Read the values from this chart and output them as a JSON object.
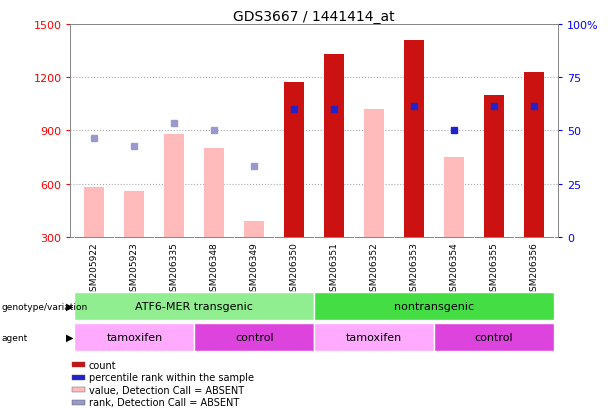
{
  "title": "GDS3667 / 1441414_at",
  "samples": [
    "GSM205922",
    "GSM205923",
    "GSM206335",
    "GSM206348",
    "GSM206349",
    "GSM206350",
    "GSM206351",
    "GSM206352",
    "GSM206353",
    "GSM206354",
    "GSM206355",
    "GSM206356"
  ],
  "count_values": [
    null,
    null,
    null,
    null,
    null,
    1170,
    1330,
    null,
    1410,
    null,
    1100,
    1230
  ],
  "value_absent": [
    580,
    560,
    880,
    800,
    390,
    null,
    null,
    1020,
    null,
    750,
    null,
    null
  ],
  "rank_absent_y": [
    860,
    810,
    940,
    900,
    700,
    null,
    null,
    null,
    null,
    null,
    null,
    null
  ],
  "percentile_rank_left": [
    null,
    null,
    null,
    null,
    null,
    1020,
    1020,
    null,
    1040,
    905,
    1040,
    1040
  ],
  "ylim_left": [
    300,
    1500
  ],
  "ylim_right": [
    0,
    100
  ],
  "yticks_left": [
    300,
    600,
    900,
    1200,
    1500
  ],
  "yticks_right": [
    0,
    25,
    50,
    75,
    100
  ],
  "groups": [
    {
      "label": "ATF6-MER transgenic",
      "start": 0,
      "end": 5,
      "color": "#90ee90"
    },
    {
      "label": "nontransgenic",
      "start": 6,
      "end": 11,
      "color": "#44dd44"
    }
  ],
  "agents": [
    {
      "label": "tamoxifen",
      "start": 0,
      "end": 2,
      "color": "#ffaaff"
    },
    {
      "label": "control",
      "start": 3,
      "end": 5,
      "color": "#dd44dd"
    },
    {
      "label": "tamoxifen",
      "start": 6,
      "end": 8,
      "color": "#ffaaff"
    },
    {
      "label": "control",
      "start": 9,
      "end": 11,
      "color": "#dd44dd"
    }
  ],
  "bar_color_red": "#cc1111",
  "bar_color_pink": "#ffbbbb",
  "dot_color_blue": "#2222cc",
  "dot_color_lightblue": "#9999cc",
  "background_color": "#ffffff",
  "plot_bg": "#ffffff",
  "legend_items": [
    {
      "color": "#cc1111",
      "label": "count"
    },
    {
      "color": "#2222cc",
      "label": "percentile rank within the sample"
    },
    {
      "color": "#ffbbbb",
      "label": "value, Detection Call = ABSENT"
    },
    {
      "color": "#9999cc",
      "label": "rank, Detection Call = ABSENT"
    }
  ]
}
